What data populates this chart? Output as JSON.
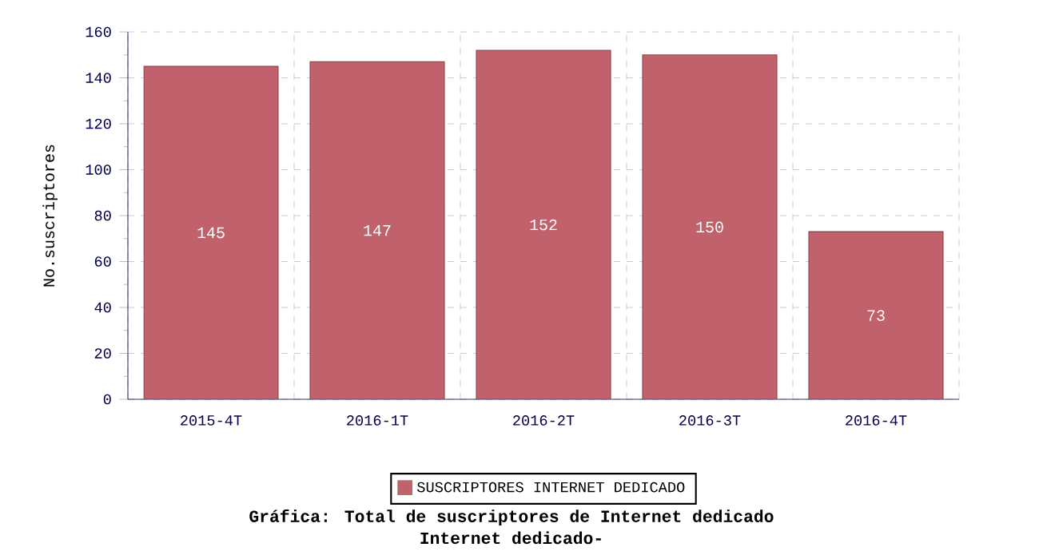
{
  "chart_data": {
    "type": "bar",
    "title": "Gráfica: Total de suscriptores de Internet dedicado",
    "subtitle": "Internet dedicado-",
    "ylabel": "No.suscriptores",
    "categories": [
      "2015-4T",
      "2016-1T",
      "2016-2T",
      "2016-3T",
      "2016-4T"
    ],
    "series": [
      {
        "name": "SUSCRIPTORES INTERNET DEDICADO",
        "color": "#c0616b",
        "values": [
          145,
          147,
          152,
          150,
          73
        ]
      }
    ],
    "ylim": [
      0,
      160
    ],
    "yticks": [
      0,
      20,
      40,
      60,
      80,
      100,
      120,
      140,
      160
    ],
    "grid": true,
    "legend": "bottom",
    "data_labels": true
  }
}
